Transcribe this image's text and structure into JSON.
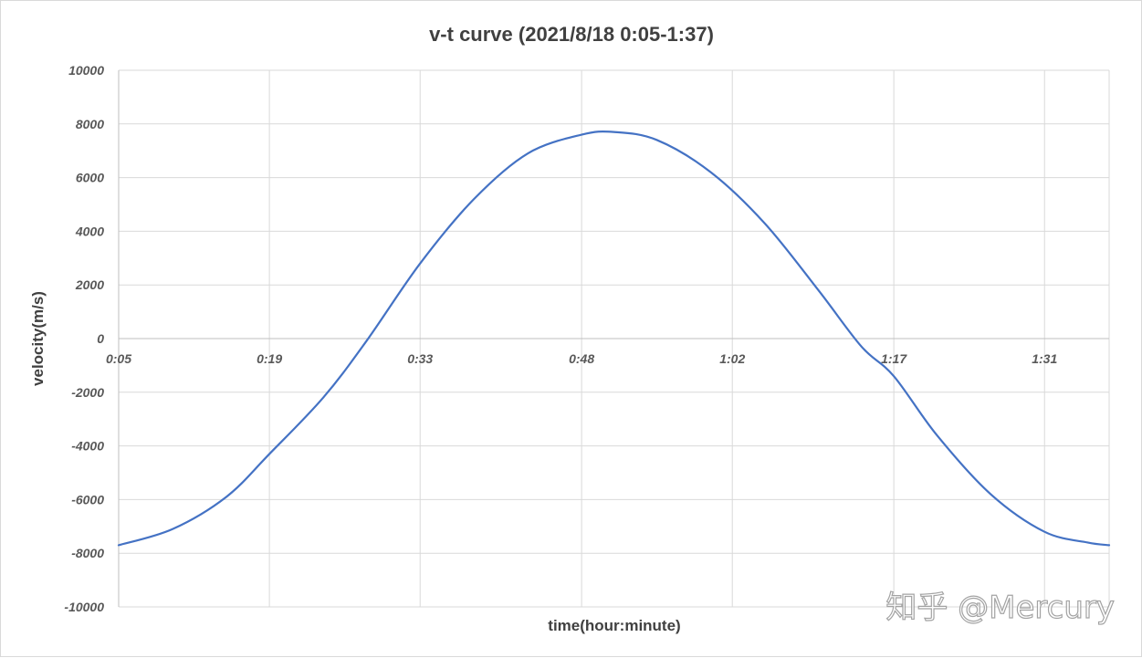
{
  "chart_data": {
    "type": "line",
    "title": "v-t curve (2021/8/18 0:05-1:37)",
    "xlabel": "time(hour:minute)",
    "ylabel": "velocity(m/s)",
    "ylim": [
      -10000,
      10000
    ],
    "xlim_minutes": [
      5,
      97
    ],
    "y_ticks": [
      "10000",
      "8000",
      "6000",
      "4000",
      "2000",
      "0",
      "-2000",
      "-4000",
      "-6000",
      "-8000",
      "-10000"
    ],
    "x_ticks": [
      "0:05",
      "0:19",
      "0:33",
      "0:48",
      "1:02",
      "1:17",
      "1:31"
    ],
    "grid": true,
    "legend": "none",
    "series": [
      {
        "color": "#4472c4",
        "x": [
          "0:05",
          "0:10",
          "0:15",
          "0:19",
          "0:24",
          "0:28",
          "0:33",
          "0:38",
          "0:43",
          "0:48",
          "0:51",
          "0:55",
          "1:00",
          "1:05",
          "1:10",
          "1:14",
          "1:17",
          "1:21",
          "1:26",
          "1:31",
          "1:35",
          "1:37"
        ],
        "values": [
          -7700,
          -7100,
          -5900,
          -4300,
          -2200,
          -100,
          2800,
          5200,
          6900,
          7600,
          7700,
          7400,
          6200,
          4300,
          1800,
          -300,
          -1400,
          -3600,
          -5800,
          -7200,
          -7600,
          -7700
        ]
      }
    ]
  },
  "watermark": {
    "text": "知乎 @Mercury"
  }
}
